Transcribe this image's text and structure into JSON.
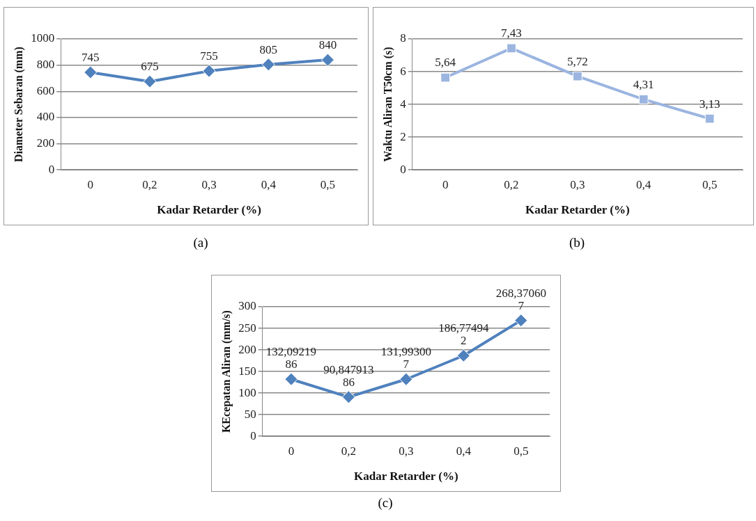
{
  "chart_data": [
    {
      "type": "line",
      "title": "(a)",
      "xlabel": "Kadar Retarder (%)",
      "ylabel": "Diameter Sebaran (mm)",
      "categories": [
        "0",
        "0,2",
        "0,3",
        "0,4",
        "0,5"
      ],
      "series": [
        {
          "color": "#4f81bd",
          "values": [
            745,
            675,
            755,
            805,
            840
          ],
          "value_labels": [
            "745",
            "675",
            "755",
            "805",
            "840"
          ]
        }
      ],
      "ylim": [
        0,
        1000
      ],
      "yticks": [
        0,
        200,
        400,
        600,
        800,
        1000
      ],
      "grid": "y",
      "marker": "diamond",
      "line_style": "solid"
    },
    {
      "type": "line",
      "title": "(b)",
      "xlabel": "Kadar Retarder (%)",
      "ylabel": "Waktu Aliran T50cm (s)",
      "categories": [
        "0",
        "0,2",
        "0,3",
        "0,4",
        "0,5"
      ],
      "series": [
        {
          "color": "#9bb5e0",
          "values": [
            5.64,
            7.43,
            5.72,
            4.31,
            3.13
          ],
          "value_labels": [
            "5,64",
            "7,43",
            "5,72",
            "4,31",
            "3,13"
          ]
        }
      ],
      "ylim": [
        0,
        8
      ],
      "yticks": [
        0,
        2,
        4,
        6,
        8
      ],
      "grid": "y",
      "marker": "square",
      "line_style": "solid"
    },
    {
      "type": "line",
      "title": "(c)",
      "xlabel": "Kadar Retarder (%)",
      "ylabel": "KEcepatan Aliran (mm/s)",
      "categories": [
        "0",
        "0,2",
        "0,3",
        "0,4",
        "0,5"
      ],
      "series": [
        {
          "color": "#4f81bd",
          "values": [
            132.0921986,
            90.84791386,
            131.993007,
            186.774942,
            268.370607
          ],
          "value_labels": [
            "132,0921986",
            "90,84791386",
            "131,993007",
            "186,774942",
            "268,370607"
          ]
        }
      ],
      "ylim": [
        0,
        300
      ],
      "yticks": [
        0,
        50,
        100,
        150,
        200,
        250,
        300
      ],
      "grid": "y",
      "marker": "diamond",
      "line_style": "solid"
    }
  ]
}
